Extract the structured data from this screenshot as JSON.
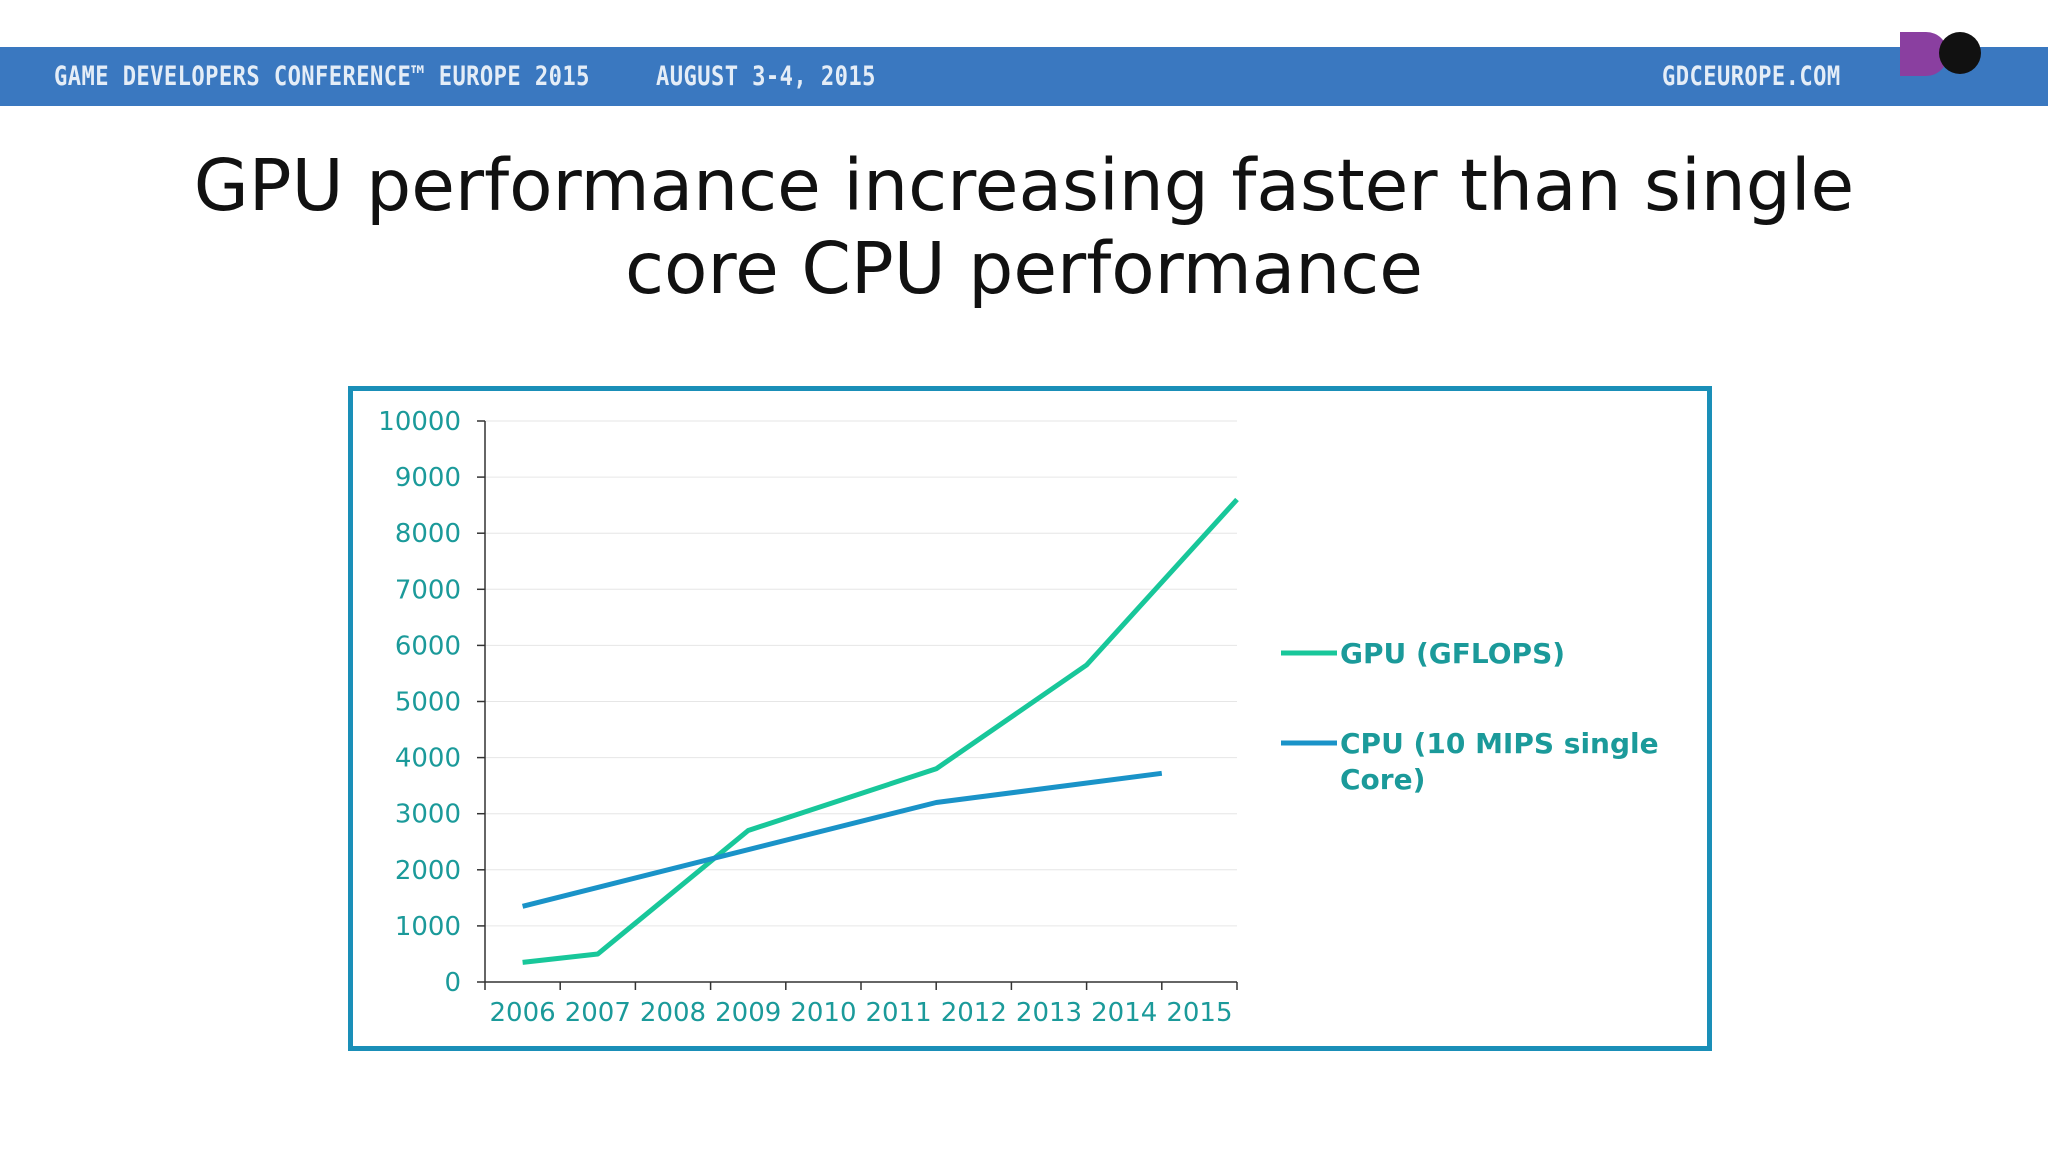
{
  "header": {
    "conference": "GAME DEVELOPERS CONFERENCE™ EUROPE 2015",
    "date": "AUGUST 3-4, 2015",
    "site": "GDCEUROPE.COM"
  },
  "slide": {
    "title_line1": "GPU performance increasing faster than single",
    "title_line2": "core CPU performance"
  },
  "colors": {
    "banner": "#3a78c0",
    "gpu": "#18c79a",
    "cpu": "#1a93c8",
    "axis_text": "#1b9a9a",
    "frame": "#1a8fb8",
    "logo_purple": "#8a3fa0",
    "logo_black": "#111111"
  },
  "chart_data": {
    "type": "line",
    "title": "",
    "xlabel": "",
    "ylabel": "",
    "categories": [
      "2006",
      "2007",
      "2008",
      "2009",
      "2010",
      "2011",
      "2012",
      "2013",
      "2014",
      "2015"
    ],
    "ylim": [
      0,
      10000
    ],
    "yticks": [
      "0",
      "1000",
      "2000",
      "3000",
      "4000",
      "5000",
      "6000",
      "7000",
      "8000",
      "9000",
      "10000"
    ],
    "grid": true,
    "legend_position": "right",
    "series": [
      {
        "name": "GPU (GFLOPS)",
        "legend_lines": [
          "GPU (GFLOPS)"
        ],
        "points": [
          {
            "x": 0,
            "y": 350
          },
          {
            "x": 1,
            "y": 500
          },
          {
            "x": 3,
            "y": 2700
          },
          {
            "x": 5.5,
            "y": 3800
          },
          {
            "x": 7.5,
            "y": 5650
          },
          {
            "x": 9.5,
            "y": 8600
          }
        ]
      },
      {
        "name": "CPU (10 MIPS single Core)",
        "legend_lines": [
          "CPU (10 MIPS single",
          "Core)"
        ],
        "points": [
          {
            "x": 0,
            "y": 1350
          },
          {
            "x": 5.5,
            "y": 3200
          },
          {
            "x": 8.5,
            "y": 3720
          }
        ]
      }
    ]
  }
}
